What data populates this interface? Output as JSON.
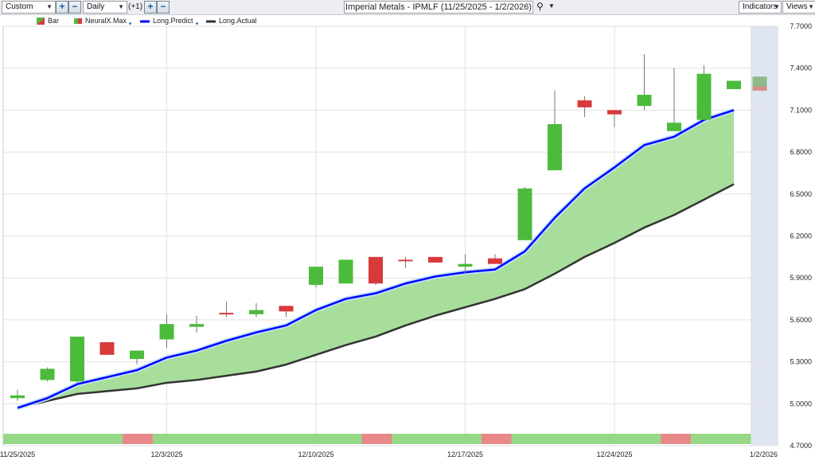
{
  "toolbar": {
    "period_select": "Custom",
    "interval_select": "Daily",
    "offset_label": "(+1)",
    "title": "Imperial Metals - IPMLF (11/25/2025 - 1/2/2026)",
    "indicators_label": "Indicators",
    "views_label": "Views",
    "plus_symbol": "+",
    "minus_symbol": "−",
    "search_icon": "search-icon",
    "dropdown_icon": "chevron-down-icon"
  },
  "legend": [
    {
      "label": "Bar",
      "icon": "bar-icon"
    },
    {
      "label": "NeuralX.Max",
      "icon": "neuralx-icon"
    },
    {
      "label": "Long.Predict",
      "color": "#0000ff"
    },
    {
      "label": "Long.Actual",
      "color": "#333333"
    }
  ],
  "colors": {
    "up": "#4cbb3c",
    "down": "#d83a3a",
    "predict": "#0000ff",
    "actual": "#333333",
    "fill": "#a3dc96",
    "grid": "#e2e2e2",
    "band_green": "#96d887",
    "band_red": "#e88888",
    "future": "#dfe6f2"
  },
  "chart_data": {
    "type": "candlestick",
    "x_labels": [
      {
        "label": "11/25/2025",
        "idx": 0
      },
      {
        "label": "12/3/2025",
        "idx": 5
      },
      {
        "label": "12/10/2025",
        "idx": 10
      },
      {
        "label": "12/17/2025",
        "idx": 15
      },
      {
        "label": "12/24/2025",
        "idx": 20
      },
      {
        "label": "1/2/2026",
        "idx": 25
      }
    ],
    "y_ticks": [
      "7.7000",
      "7.4000",
      "7.1000",
      "6.8000",
      "6.5000",
      "6.2000",
      "5.9000",
      "5.6000",
      "5.3000",
      "5.0000",
      "4.7000"
    ],
    "ylim": [
      4.7,
      7.7
    ],
    "bars": [
      {
        "o": 5.04,
        "h": 5.1,
        "l": 5.02,
        "c": 5.06
      },
      {
        "o": 5.17,
        "h": 5.26,
        "l": 5.16,
        "c": 5.25
      },
      {
        "o": 5.16,
        "h": 5.48,
        "l": 5.15,
        "c": 5.48
      },
      {
        "o": 5.44,
        "h": 5.44,
        "l": 5.35,
        "c": 5.35
      },
      {
        "o": 5.32,
        "h": 5.38,
        "l": 5.28,
        "c": 5.38
      },
      {
        "o": 5.46,
        "h": 5.64,
        "l": 5.4,
        "c": 5.57
      },
      {
        "o": 5.55,
        "h": 5.63,
        "l": 5.51,
        "c": 5.57
      },
      {
        "o": 5.65,
        "h": 5.73,
        "l": 5.62,
        "c": 5.64
      },
      {
        "o": 5.64,
        "h": 5.72,
        "l": 5.62,
        "c": 5.67
      },
      {
        "o": 5.7,
        "h": 5.7,
        "l": 5.62,
        "c": 5.66
      },
      {
        "o": 5.85,
        "h": 5.98,
        "l": 5.83,
        "c": 5.98
      },
      {
        "o": 5.86,
        "h": 6.03,
        "l": 5.86,
        "c": 6.03
      },
      {
        "o": 6.05,
        "h": 6.05,
        "l": 5.85,
        "c": 5.86
      },
      {
        "o": 6.03,
        "h": 6.05,
        "l": 5.97,
        "c": 6.02
      },
      {
        "o": 6.05,
        "h": 6.05,
        "l": 6.01,
        "c": 6.01
      },
      {
        "o": 5.98,
        "h": 6.07,
        "l": 5.93,
        "c": 6.0
      },
      {
        "o": 6.04,
        "h": 6.07,
        "l": 6.0,
        "c": 6.0
      },
      {
        "o": 6.17,
        "h": 6.55,
        "l": 6.17,
        "c": 6.54
      },
      {
        "o": 6.67,
        "h": 7.24,
        "l": 6.67,
        "c": 7.0
      },
      {
        "o": 7.17,
        "h": 7.2,
        "l": 7.05,
        "c": 7.12
      },
      {
        "o": 7.1,
        "h": 7.1,
        "l": 6.98,
        "c": 7.07
      },
      {
        "o": 7.13,
        "h": 7.5,
        "l": 7.1,
        "c": 7.21
      },
      {
        "o": 6.95,
        "h": 7.4,
        "l": 6.95,
        "c": 7.01
      },
      {
        "o": 7.03,
        "h": 7.42,
        "l": 7.03,
        "c": 7.36
      },
      {
        "o": 7.25,
        "h": 7.31,
        "l": 7.25,
        "c": 7.31
      },
      {
        "o": 7.24,
        "h": 7.34,
        "l": 7.24,
        "c": 7.34
      }
    ],
    "series": [
      {
        "name": "Long.Predict",
        "x": [
          0,
          1,
          2,
          3,
          4,
          5,
          6,
          7,
          8,
          9,
          10,
          11,
          12,
          13,
          14,
          15,
          16,
          17,
          18,
          19,
          20,
          21,
          22,
          23,
          24
        ],
        "values": [
          4.97,
          5.04,
          5.14,
          5.19,
          5.24,
          5.33,
          5.38,
          5.45,
          5.51,
          5.56,
          5.67,
          5.75,
          5.79,
          5.86,
          5.91,
          5.94,
          5.96,
          6.09,
          6.33,
          6.54,
          6.69,
          6.85,
          6.91,
          7.03,
          7.1
        ]
      },
      {
        "name": "Long.Actual",
        "x": [
          0,
          1,
          2,
          3,
          4,
          5,
          6,
          7,
          8,
          9,
          10,
          11,
          12,
          13,
          14,
          15,
          16,
          17,
          18,
          19,
          20,
          21,
          22,
          23,
          24
        ],
        "values": [
          4.97,
          5.02,
          5.07,
          5.09,
          5.11,
          5.15,
          5.17,
          5.2,
          5.23,
          5.28,
          5.35,
          5.42,
          5.48,
          5.56,
          5.63,
          5.69,
          5.75,
          5.82,
          5.93,
          6.05,
          6.15,
          6.26,
          6.35,
          6.46,
          6.57
        ]
      }
    ],
    "signal_band": [
      "g",
      "g",
      "g",
      "g",
      "r",
      "g",
      "g",
      "g",
      "g",
      "g",
      "g",
      "g",
      "r",
      "g",
      "g",
      "g",
      "r",
      "g",
      "g",
      "g",
      "g",
      "g",
      "r",
      "g",
      "g"
    ]
  }
}
